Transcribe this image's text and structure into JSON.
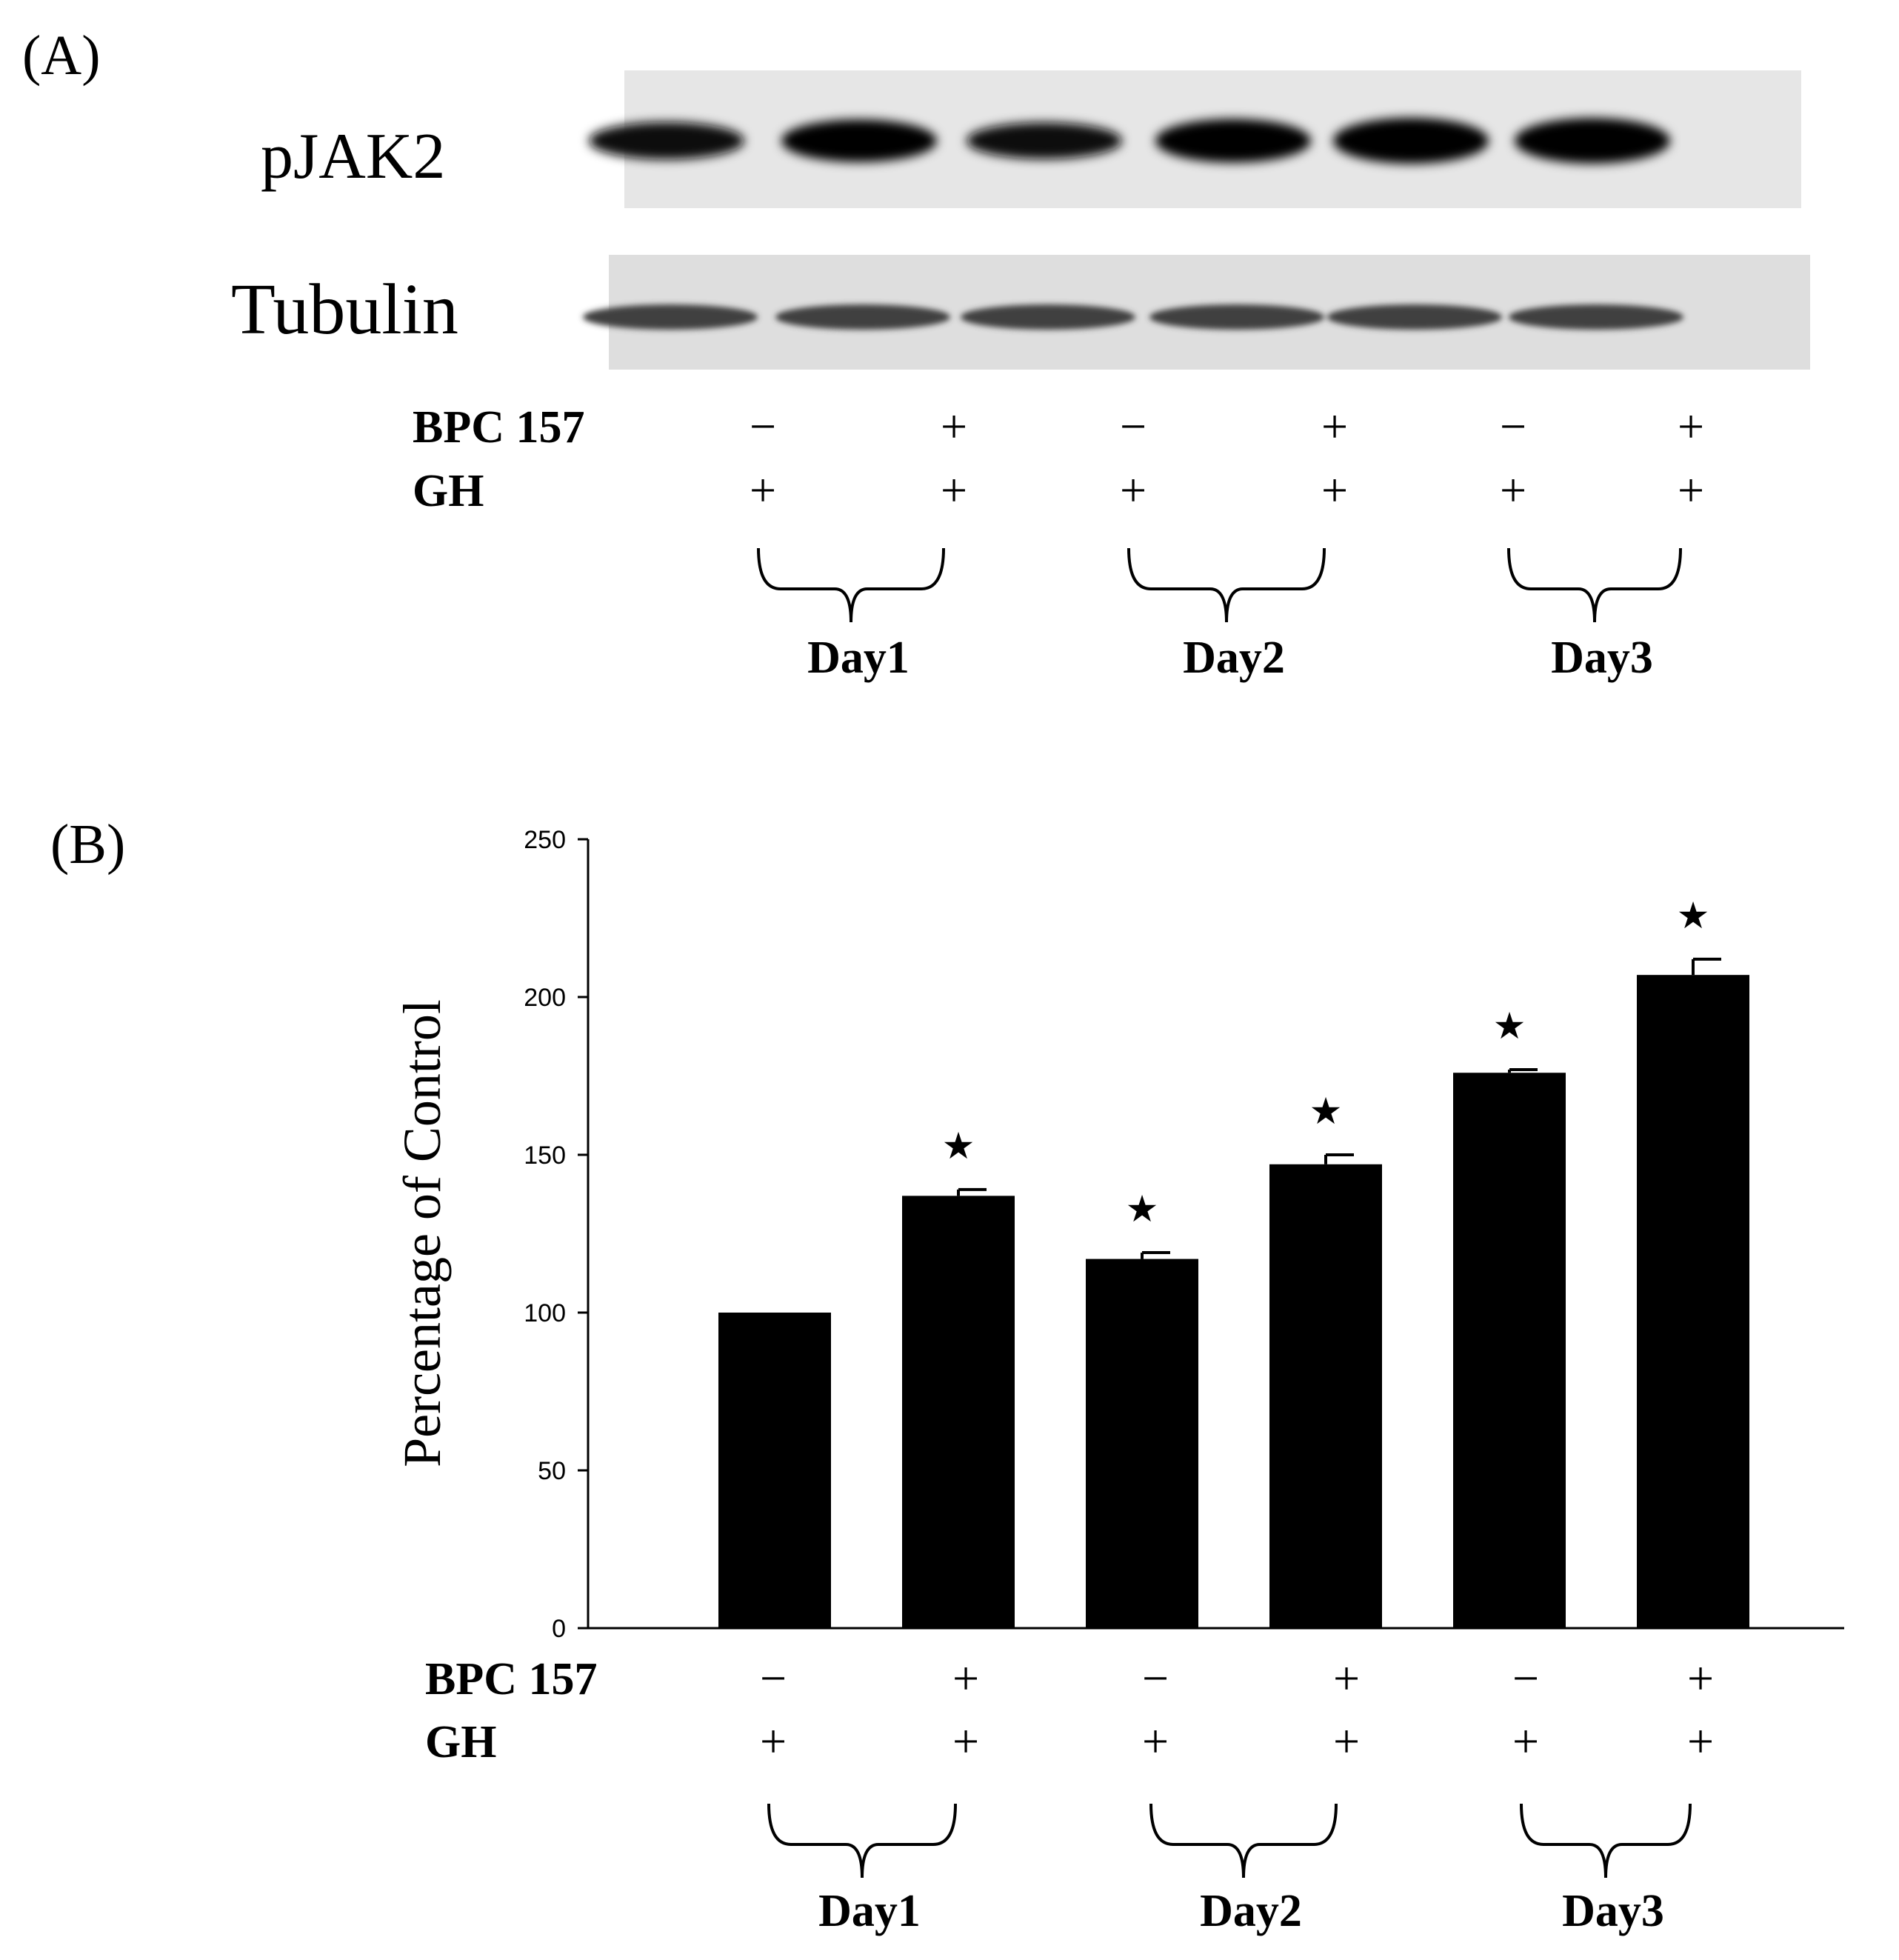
{
  "panel_a": {
    "label": "(A)",
    "blot_labels": [
      "pJAK2",
      "Tubulin"
    ],
    "pjak2_band_intensity": [
      0.62,
      0.85,
      0.58,
      0.9,
      1.0,
      0.98
    ],
    "tubulin_band_intensity": [
      0.75,
      0.75,
      0.74,
      0.74,
      0.75,
      0.72
    ]
  },
  "conditions": {
    "rows": [
      {
        "label": "BPC 157",
        "signs": [
          "−",
          "+",
          "−",
          "+",
          "−",
          "+"
        ]
      },
      {
        "label": "GH",
        "signs": [
          "+",
          "+",
          "+",
          "+",
          "+",
          "+"
        ]
      }
    ],
    "groups": [
      "Day1",
      "Day2",
      "Day3"
    ]
  },
  "panel_b": {
    "label": "(B)"
  },
  "chart_data": {
    "type": "bar",
    "categories": [
      "",
      "",
      "",
      "",
      "",
      ""
    ],
    "values": [
      100,
      137,
      117,
      147,
      176,
      207
    ],
    "errors": [
      0,
      2,
      2,
      3,
      1,
      5
    ],
    "significance": [
      "",
      "★",
      "★",
      "★",
      "★",
      "★"
    ],
    "ylabel": "Percentage of Control",
    "xlabel": "",
    "ylim": [
      0,
      250
    ],
    "yticks": [
      "0",
      "50",
      "100",
      "150",
      "200",
      "250"
    ],
    "bar_color": "#000000",
    "grid": false,
    "legend": "none"
  }
}
